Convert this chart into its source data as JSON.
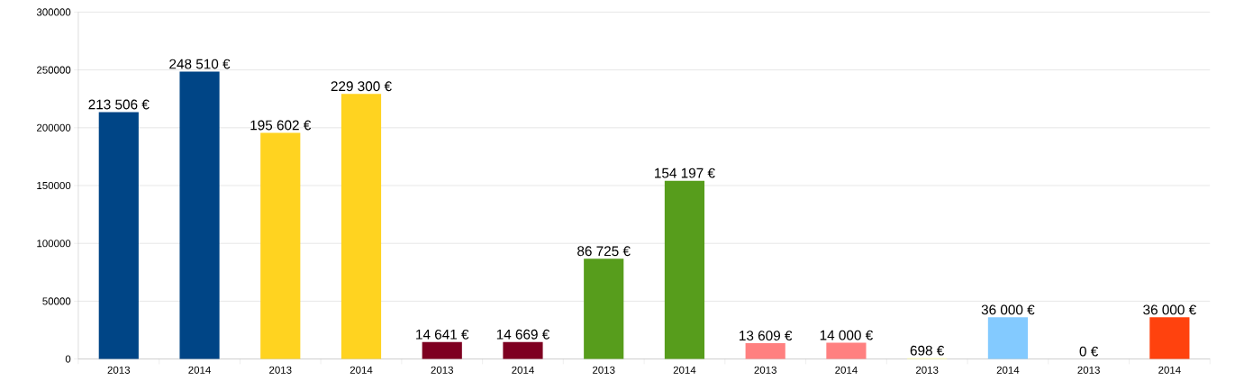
{
  "chart_data": {
    "type": "bar",
    "categories": [
      "2013",
      "2014",
      "2013",
      "2014",
      "2013",
      "2014",
      "2013",
      "2014",
      "2013",
      "2014",
      "2013",
      "2014",
      "2013",
      "2014"
    ],
    "values": [
      213506,
      248510,
      195602,
      229300,
      14641,
      14669,
      86725,
      154197,
      13609,
      14000,
      698,
      36000,
      0,
      36000
    ],
    "colors": [
      "#004586",
      "#004586",
      "#ffd320",
      "#ffd320",
      "#7e0021",
      "#7e0021",
      "#579d1c",
      "#579d1c",
      "#ff8080",
      "#ff8080",
      "#ffff99",
      "#83caff",
      "#314004",
      "#ff420e"
    ],
    "value_labels": [
      "213 506 €",
      "248 510 €",
      "195 602 €",
      "229 300 €",
      "14 641 €",
      "14 669 €",
      "86 725 €",
      "154 197 €",
      "13 609 €",
      "14 000 €",
      "698 €",
      "36 000 €",
      "0 €",
      "36 000 €"
    ],
    "ylim": [
      0,
      300000
    ],
    "yticks": [
      0,
      50000,
      100000,
      150000,
      200000,
      250000,
      300000
    ],
    "grid": "y"
  }
}
